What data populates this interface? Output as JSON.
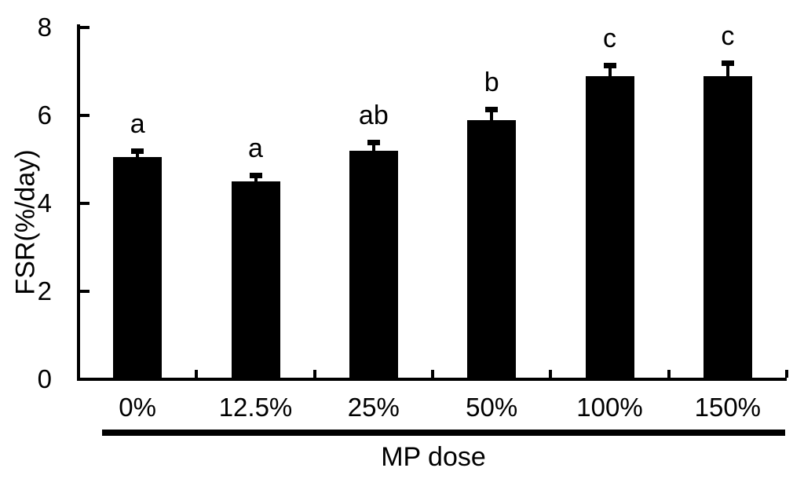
{
  "chart_data": {
    "type": "bar",
    "title": "",
    "xlabel": "MP dose",
    "ylabel": "FSR(%/day)",
    "categories": [
      "0%",
      "12.5%",
      "25%",
      "50%",
      "100%",
      "150%"
    ],
    "series": [
      {
        "name": "FSR",
        "values": [
          5.05,
          4.5,
          5.2,
          5.9,
          6.9,
          6.9
        ],
        "errors": [
          0.15,
          0.15,
          0.2,
          0.25,
          0.25,
          0.3
        ]
      }
    ],
    "significance_letters": [
      "a",
      "a",
      "ab",
      "b",
      "c",
      "c"
    ],
    "ylim": [
      0,
      8
    ],
    "yticks": [
      0,
      2,
      4,
      6,
      8
    ],
    "grid": false,
    "legend_position": "none",
    "bar_color": "#000000",
    "background_color": "#ffffff",
    "error_bar_direction": "upper-only"
  }
}
